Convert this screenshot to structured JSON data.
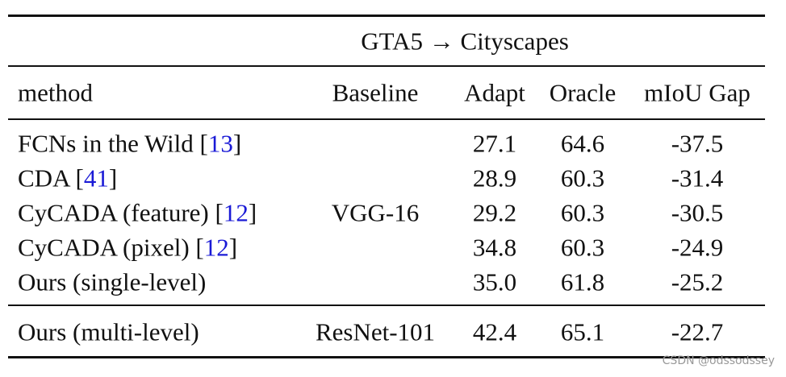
{
  "table": {
    "group_header": "GTA5 → Cityscapes",
    "columns": [
      "method",
      "Baseline",
      "Adapt",
      "Oracle",
      "mIoU Gap"
    ],
    "rows": [
      {
        "method": [
          {
            "text": "FCNs in the Wild ["
          },
          {
            "text": "13",
            "link": true
          },
          {
            "text": "]"
          }
        ],
        "adapt": "27.1",
        "oracle": "64.6",
        "gap": "-37.5"
      },
      {
        "method": [
          {
            "text": "CDA ["
          },
          {
            "text": "41",
            "link": true
          },
          {
            "text": "]"
          }
        ],
        "adapt": "28.9",
        "oracle": "60.3",
        "gap": "-31.4"
      },
      {
        "method": [
          {
            "text": "CyCADA (feature) ["
          },
          {
            "text": "12",
            "link": true
          },
          {
            "text": "]"
          }
        ],
        "adapt": "29.2",
        "oracle": "60.3",
        "gap": "-30.5"
      },
      {
        "method": [
          {
            "text": "CyCADA (pixel) ["
          },
          {
            "text": "12",
            "link": true
          },
          {
            "text": "]"
          }
        ],
        "adapt": "34.8",
        "oracle": "60.3",
        "gap": "-24.9"
      },
      {
        "method": [
          {
            "text": "Ours (single-level)"
          }
        ],
        "adapt": "35.0",
        "oracle": "61.8",
        "gap": "-25.2"
      },
      {
        "method": [
          {
            "text": "Ours (multi-level)"
          }
        ],
        "adapt": "42.4",
        "oracle": "65.1",
        "gap": "-22.7"
      }
    ],
    "baselines": [
      {
        "text": "VGG-16",
        "rows": [
          0,
          4
        ]
      },
      {
        "text": "ResNet-101",
        "rows": [
          5,
          5
        ]
      }
    ]
  },
  "watermark": "CSDN @odssodssey"
}
